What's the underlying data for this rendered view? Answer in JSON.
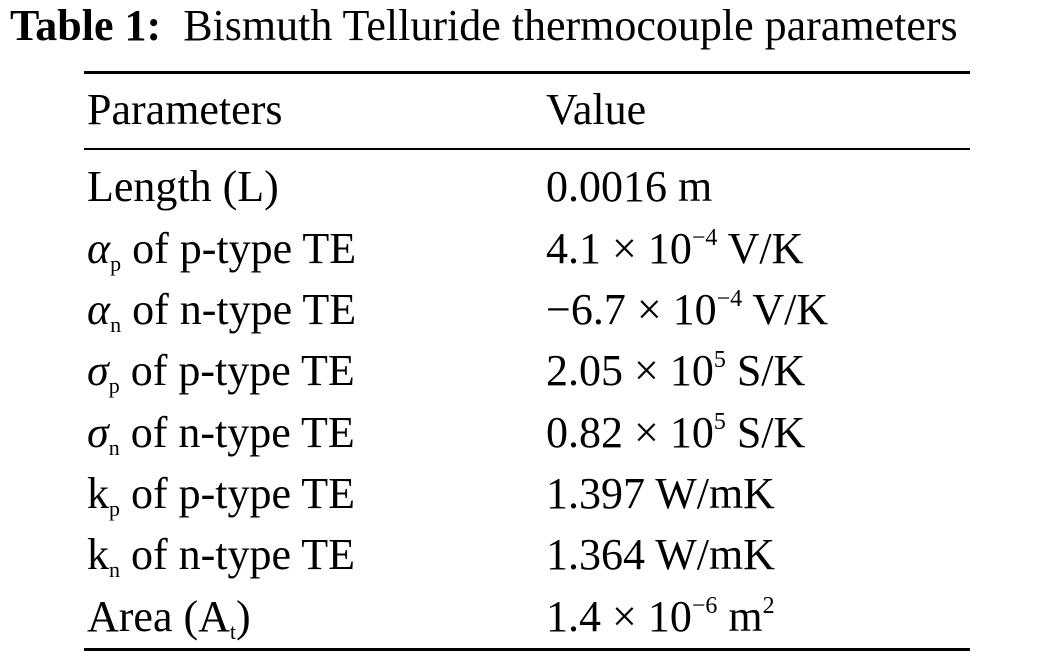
{
  "table": {
    "caption_label": "Table 1:",
    "caption_text": "Bismuth Telluride thermocouple parameters",
    "headers": {
      "param": "Parameters",
      "value": "Value"
    },
    "rows": [
      {
        "param_main": "Length (L)",
        "value_main": "0.0016 m"
      },
      {
        "param_symbol": "α",
        "param_sub": "p",
        "param_rest": " of p-type TE",
        "value_main": "4.1 × 10",
        "value_sup": "−4",
        "value_rest": " V/K"
      },
      {
        "param_symbol": "α",
        "param_sub": "n",
        "param_rest": " of n-type TE",
        "value_main": "−6.7 × 10",
        "value_sup": "−4",
        "value_rest": " V/K"
      },
      {
        "param_symbol": "σ",
        "param_sub": "p",
        "param_rest": " of p-type TE",
        "value_main": "2.05 × 10",
        "value_sup": "5",
        "value_rest": " S/K"
      },
      {
        "param_symbol": "σ",
        "param_sub": "n",
        "param_rest": " of n-type TE",
        "value_main": "0.82 × 10",
        "value_sup": "5",
        "value_rest": " S/K"
      },
      {
        "param_symbol": "k",
        "param_sub": "p",
        "param_rest": " of p-type TE",
        "value_main": "1.397 W/mK"
      },
      {
        "param_symbol": "k",
        "param_sub": "n",
        "param_rest": " of n-type TE",
        "value_main": "1.364 W/mK"
      },
      {
        "param_main": "Area (A",
        "param_sub": "t",
        "param_rest": ")",
        "value_main": "1.4 × 10",
        "value_sup": "−6",
        "value_rest": " m",
        "value_sup2": "2"
      }
    ]
  }
}
